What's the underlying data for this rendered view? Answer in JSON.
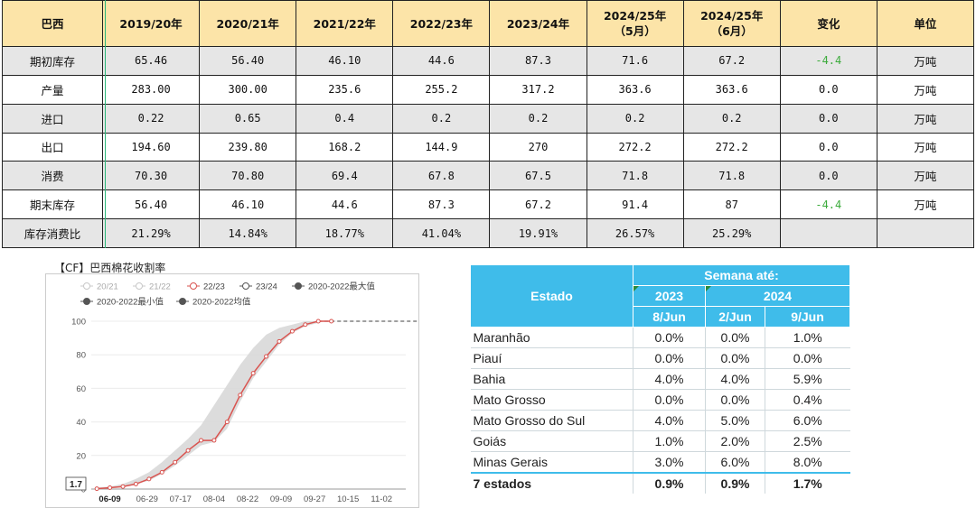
{
  "balance": {
    "headers": [
      "巴西",
      "2019/20年",
      "2020/21年",
      "2021/22年",
      "2022/23年",
      "2023/24年",
      "2024/25年\n（5月）",
      "2024/25年\n（6月）",
      "变化",
      "单位"
    ],
    "rows": [
      {
        "label": "期初库存",
        "values": [
          "65.46",
          "56.40",
          "46.10",
          "44.6",
          "87.3",
          "71.6",
          "67.2",
          "-4.4",
          "万吨"
        ]
      },
      {
        "label": "产量",
        "values": [
          "283.00",
          "300.00",
          "235.6",
          "255.2",
          "317.2",
          "363.6",
          "363.6",
          "0.0",
          "万吨"
        ]
      },
      {
        "label": "进口",
        "values": [
          "0.22",
          "0.65",
          "0.4",
          "0.2",
          "0.2",
          "0.2",
          "0.2",
          "0.0",
          "万吨"
        ]
      },
      {
        "label": "出口",
        "values": [
          "194.60",
          "239.80",
          "168.2",
          "144.9",
          "270",
          "272.2",
          "272.2",
          "0.0",
          "万吨"
        ]
      },
      {
        "label": "消费",
        "values": [
          "70.30",
          "70.80",
          "69.4",
          "67.8",
          "67.5",
          "71.8",
          "71.8",
          "0.0",
          "万吨"
        ]
      },
      {
        "label": "期末库存",
        "values": [
          "56.40",
          "46.10",
          "44.6",
          "87.3",
          "67.2",
          "91.4",
          "87",
          "-4.4",
          "万吨"
        ]
      },
      {
        "label": "库存消费比",
        "values": [
          "21.29%",
          "14.84%",
          "18.77%",
          "41.04%",
          "19.91%",
          "26.57%",
          "25.29%",
          "",
          ""
        ]
      }
    ],
    "colors": {
      "header_bg": "#fce4a8",
      "shade_bg": "#e6e6e6",
      "negative": "#3cab3c"
    }
  },
  "chart_title": "【CF】巴西棉花收割率",
  "chart_data": {
    "type": "line",
    "title": "【CF】巴西棉花收割率",
    "legend": [
      "20/21",
      "21/22",
      "22/23",
      "23/24",
      "2020-2022最大值",
      "2020-2022最小值",
      "2020-2022均值"
    ],
    "legend_placement": "top",
    "x_ticks": [
      "06-09",
      "06-29",
      "07-17",
      "08-04",
      "08-22",
      "09-09",
      "09-27",
      "10-15",
      "11-02"
    ],
    "y_ticks": [
      0,
      20,
      40,
      60,
      80,
      100
    ],
    "ylim": [
      0,
      100
    ],
    "grid": true,
    "highlight_label": "1.7",
    "series": [
      {
        "name": "22/23",
        "color": "#d9534f",
        "points": [
          [
            "06-02",
            0.2
          ],
          [
            "06-09",
            0.8
          ],
          [
            "06-16",
            1.5
          ],
          [
            "06-23",
            3
          ],
          [
            "06-30",
            6
          ],
          [
            "07-07",
            10
          ],
          [
            "07-14",
            16
          ],
          [
            "07-21",
            23
          ],
          [
            "07-28",
            29
          ],
          [
            "08-04",
            29
          ],
          [
            "08-11",
            40
          ],
          [
            "08-18",
            56
          ],
          [
            "08-25",
            69
          ],
          [
            "09-01",
            79
          ],
          [
            "09-08",
            88
          ],
          [
            "09-15",
            94
          ],
          [
            "09-22",
            98
          ],
          [
            "09-29",
            100
          ],
          [
            "10-06",
            100
          ]
        ]
      }
    ],
    "band": {
      "name": "2020-2022",
      "upper": [
        [
          "06-02",
          1
        ],
        [
          "06-09",
          1.5
        ],
        [
          "06-16",
          3
        ],
        [
          "06-23",
          6
        ],
        [
          "06-30",
          10
        ],
        [
          "07-07",
          16
        ],
        [
          "07-14",
          23
        ],
        [
          "07-21",
          30
        ],
        [
          "07-28",
          38
        ],
        [
          "08-04",
          50
        ],
        [
          "08-11",
          62
        ],
        [
          "08-18",
          74
        ],
        [
          "08-25",
          84
        ],
        [
          "09-01",
          92
        ],
        [
          "09-08",
          96
        ],
        [
          "09-15",
          98
        ],
        [
          "09-22",
          100
        ],
        [
          "09-29",
          100
        ]
      ],
      "lower": [
        [
          "06-02",
          0
        ],
        [
          "06-09",
          0.3
        ],
        [
          "06-16",
          1
        ],
        [
          "06-23",
          3
        ],
        [
          "06-30",
          5
        ],
        [
          "07-07",
          9
        ],
        [
          "07-14",
          14
        ],
        [
          "07-21",
          20
        ],
        [
          "07-28",
          26
        ],
        [
          "08-04",
          28
        ],
        [
          "08-11",
          36
        ],
        [
          "08-18",
          52
        ],
        [
          "08-25",
          66
        ],
        [
          "09-01",
          76
        ],
        [
          "09-08",
          86
        ],
        [
          "09-15",
          93
        ],
        [
          "09-22",
          97
        ],
        [
          "09-29",
          99
        ]
      ]
    },
    "dashed_after": [
      [
        "09-29",
        100
      ],
      [
        "12-15",
        100
      ]
    ]
  },
  "estados": {
    "group_header": "Semana até:",
    "state_header": "Estado",
    "years": [
      "2023",
      "2024"
    ],
    "dates": [
      "8/Jun",
      "2/Jun",
      "9/Jun"
    ],
    "rows": [
      {
        "estado": "Maranhão",
        "values": [
          "0.0%",
          "0.0%",
          "1.0%"
        ]
      },
      {
        "estado": "Piauí",
        "values": [
          "0.0%",
          "0.0%",
          "0.0%"
        ]
      },
      {
        "estado": "Bahia",
        "values": [
          "4.0%",
          "4.0%",
          "5.9%"
        ]
      },
      {
        "estado": "Mato Grosso",
        "values": [
          "0.0%",
          "0.0%",
          "0.4%"
        ]
      },
      {
        "estado": "Mato Grosso do Sul",
        "values": [
          "4.0%",
          "5.0%",
          "6.0%"
        ]
      },
      {
        "estado": "Goiás",
        "values": [
          "1.0%",
          "2.0%",
          "2.5%"
        ]
      },
      {
        "estado": "Minas Gerais",
        "values": [
          "3.0%",
          "6.0%",
          "8.0%"
        ]
      }
    ],
    "total": {
      "estado": "7 estados",
      "values": [
        "0.9%",
        "0.9%",
        "1.7%"
      ]
    },
    "colors": {
      "header_bg": "#3fbcea"
    }
  }
}
